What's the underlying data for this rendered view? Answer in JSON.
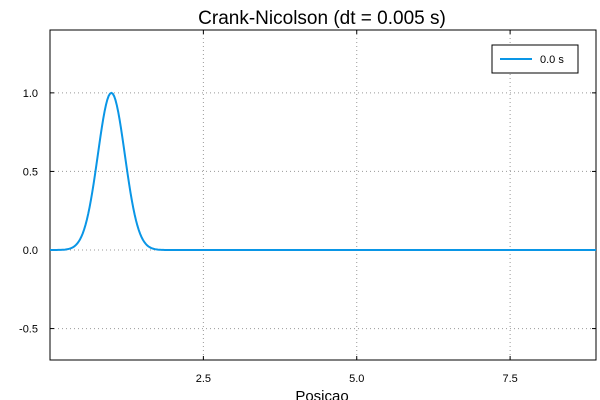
{
  "chart_data": {
    "type": "line",
    "title": "Crank-Nicolson (dt = 0.005 s)",
    "xlabel": "Posicao",
    "ylabel": "",
    "xlim": [
      0.0,
      8.9
    ],
    "ylim": [
      -0.7,
      1.4
    ],
    "x_ticks": [
      "2.5",
      "5.0",
      "7.5"
    ],
    "x_tick_values": [
      2.5,
      5.0,
      7.5
    ],
    "y_ticks": [
      "1.0",
      "0.5",
      "0.0",
      "-0.5"
    ],
    "y_tick_values": [
      1.0,
      0.5,
      0.0,
      -0.5
    ],
    "grid": true,
    "legend_position": "top-right",
    "series": [
      {
        "name": "0.0 s",
        "color": "#0a96e6",
        "x": [
          0.0,
          0.1,
          0.2,
          0.3,
          0.4,
          0.5,
          0.6,
          0.7,
          0.8,
          0.9,
          1.0,
          1.1,
          1.2,
          1.3,
          1.4,
          1.5,
          1.6,
          1.7,
          1.8,
          1.9,
          2.0,
          2.5,
          3.0,
          4.0,
          5.0,
          6.0,
          7.0,
          8.0,
          8.9
        ],
        "y": [
          0.0,
          0.001,
          0.006,
          0.027,
          0.089,
          0.222,
          0.43,
          0.667,
          0.868,
          0.98,
          1.0,
          0.98,
          0.868,
          0.667,
          0.43,
          0.222,
          0.089,
          0.027,
          0.006,
          0.001,
          0.0,
          0.0,
          0.0,
          0.0,
          0.0,
          0.0,
          0.0,
          0.0,
          0.0
        ]
      }
    ]
  }
}
